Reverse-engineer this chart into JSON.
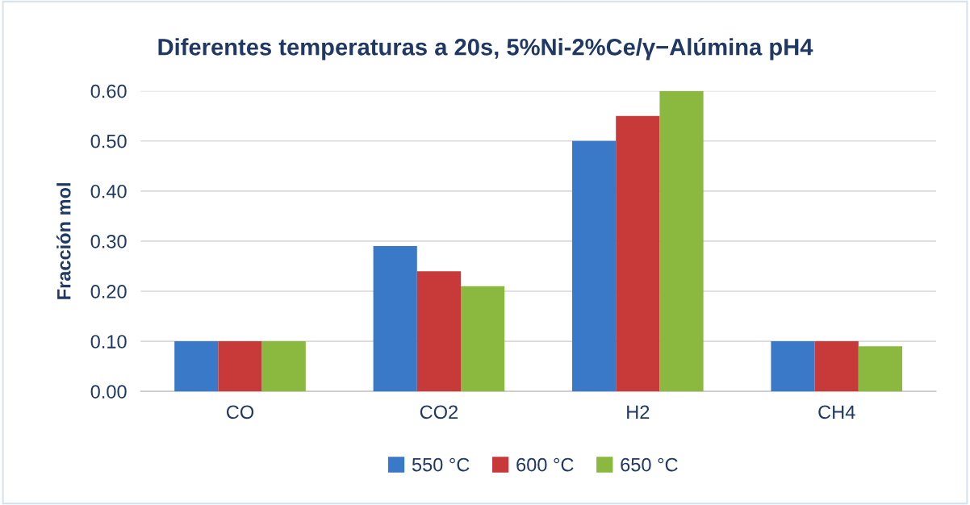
{
  "chart_data": {
    "type": "bar",
    "title": "Diferentes temperaturas a 20s, 5%Ni-2%Ce/γ−Alúmina pH4",
    "ylabel": "Fracción mol",
    "categories": [
      "CO",
      "CO2",
      "H2",
      "CH4"
    ],
    "series": [
      {
        "name": "550 °C",
        "color": "#3a78c8",
        "values": [
          0.1,
          0.29,
          0.5,
          0.1
        ]
      },
      {
        "name": "600 °C",
        "color": "#c83a3a",
        "values": [
          0.1,
          0.24,
          0.55,
          0.1
        ]
      },
      {
        "name": "650 °C",
        "color": "#8bb83e",
        "values": [
          0.1,
          0.21,
          0.6,
          0.09
        ]
      }
    ],
    "ylim": [
      0,
      0.6
    ],
    "yticks": [
      {
        "value": 0,
        "label": "0.00"
      },
      {
        "value": 0.1,
        "label": "0.10"
      },
      {
        "value": 0.2,
        "label": "0.20"
      },
      {
        "value": 0.3,
        "label": "0.30"
      },
      {
        "value": 0.4,
        "label": "0.40"
      },
      {
        "value": 0.5,
        "label": "0.50"
      },
      {
        "value": 0.6,
        "label": "0.60"
      }
    ],
    "grid": "y",
    "legend": "bottom"
  }
}
